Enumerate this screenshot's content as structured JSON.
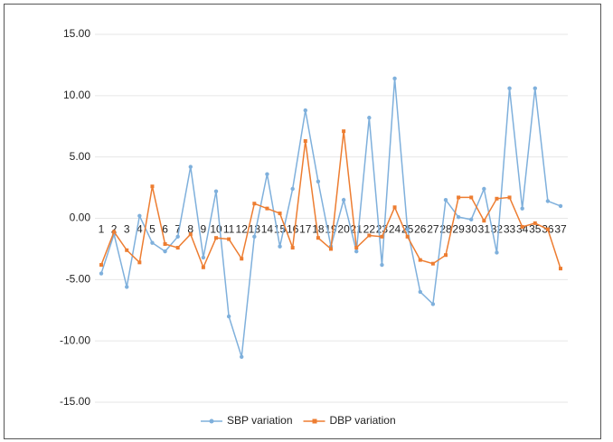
{
  "chart_data": {
    "type": "line",
    "categories": [
      "1",
      "2",
      "3",
      "4",
      "5",
      "6",
      "7",
      "8",
      "9",
      "10",
      "11",
      "12",
      "13",
      "14",
      "15",
      "16",
      "17",
      "18",
      "19",
      "20",
      "21",
      "22",
      "23",
      "24",
      "25",
      "26",
      "27",
      "28",
      "29",
      "30",
      "31",
      "32",
      "33",
      "34",
      "35",
      "36",
      "37"
    ],
    "series": [
      {
        "name": "SBP variation",
        "color": "#7fb0dc",
        "values": [
          -4.5,
          -1.3,
          -5.6,
          0.2,
          -2.0,
          -2.7,
          -1.5,
          4.2,
          -3.2,
          2.2,
          -8.0,
          -11.3,
          -1.5,
          3.6,
          -2.3,
          2.4,
          8.8,
          3.0,
          -2.3,
          1.5,
          -2.7,
          8.2,
          -3.8,
          11.4,
          -0.9,
          -6.0,
          -7.0,
          1.5,
          0.1,
          -0.1,
          2.4,
          -2.8,
          10.6,
          0.8,
          10.6,
          1.4,
          1.0
        ]
      },
      {
        "name": "DBP variation",
        "color": "#ed7d31",
        "values": [
          -3.8,
          -1.1,
          -2.6,
          -3.6,
          2.6,
          -2.1,
          -2.4,
          -1.3,
          -4.0,
          -1.6,
          -1.7,
          -3.3,
          1.2,
          0.8,
          0.4,
          -2.4,
          6.3,
          -1.6,
          -2.5,
          7.1,
          -2.4,
          -1.4,
          -1.5,
          0.9,
          -1.5,
          -3.4,
          -3.7,
          -3.0,
          1.7,
          1.7,
          -0.2,
          1.6,
          1.7,
          -0.7,
          -0.4,
          -0.9,
          -4.1
        ]
      }
    ],
    "ylim": [
      -15,
      15
    ],
    "yticks": [
      {
        "value": -15,
        "label": "-15.00"
      },
      {
        "value": -10,
        "label": "-10.00"
      },
      {
        "value": -5,
        "label": "-5.00"
      },
      {
        "value": 0,
        "label": "0.00"
      },
      {
        "value": 5,
        "label": "5.00"
      },
      {
        "value": 10,
        "label": "10.00"
      },
      {
        "value": 15,
        "label": "15.00"
      }
    ],
    "grid": true,
    "legend": "bottom"
  }
}
